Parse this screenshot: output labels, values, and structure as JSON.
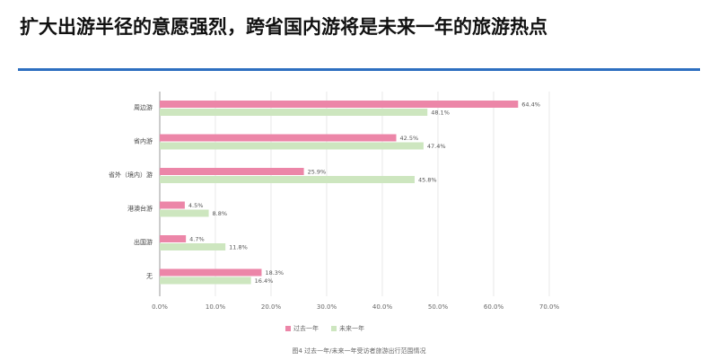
{
  "page": {
    "title": "扩大出游半径的意愿强烈，跨省国内游将是未来一年的旅游热点",
    "caption": "图4 过去一年/未来一年受访者旅游出行范围情况"
  },
  "chart_data": {
    "type": "bar",
    "orientation": "horizontal",
    "categories": [
      "周边游",
      "省内游",
      "省外（境内）游",
      "港澳台游",
      "出国游",
      "无"
    ],
    "series": [
      {
        "name": "过去一年",
        "color": "#ec86a8",
        "values": [
          64.4,
          42.5,
          25.9,
          4.5,
          4.7,
          18.3
        ]
      },
      {
        "name": "未来一年",
        "color": "#cde6bf",
        "values": [
          48.1,
          47.4,
          45.8,
          8.8,
          11.8,
          16.4
        ]
      }
    ],
    "xlim": [
      0,
      70
    ],
    "x_ticks": [
      "0.0%",
      "10.0%",
      "20.0%",
      "30.0%",
      "40.0%",
      "50.0%",
      "60.0%",
      "70.0%"
    ],
    "value_suffix": "%",
    "grid": "vertical",
    "legend_position": "bottom"
  }
}
